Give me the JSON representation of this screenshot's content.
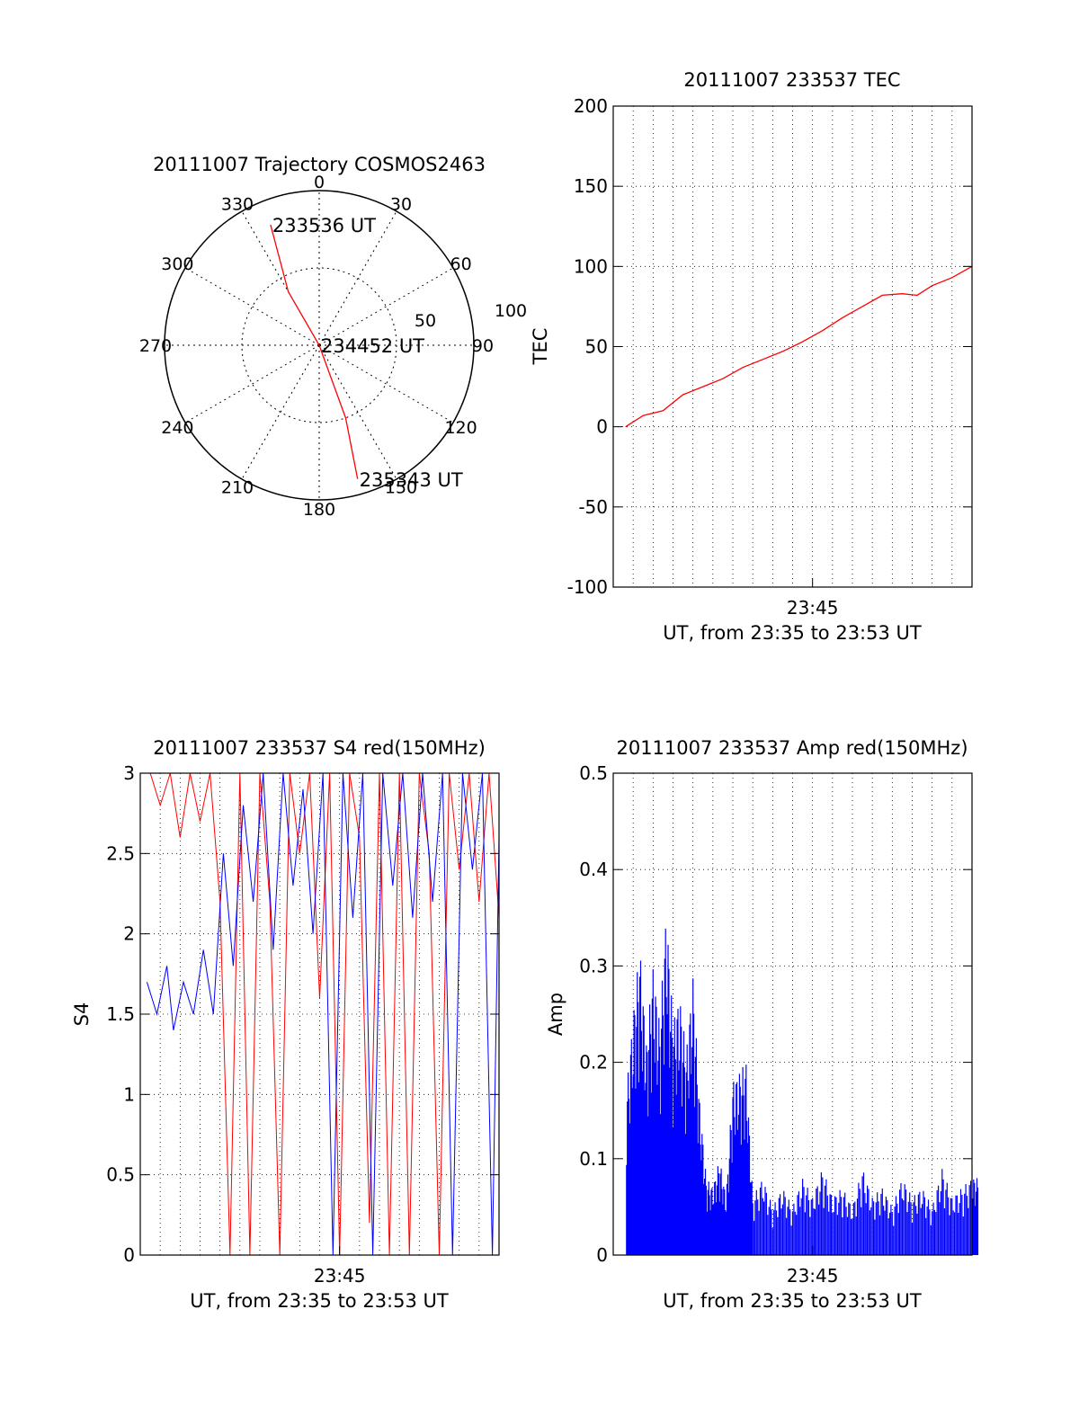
{
  "chart_data": [
    {
      "type": "polar",
      "title": "20111007 Trajectory COSMOS2463",
      "angular_ticks": [
        "0",
        "30",
        "60",
        "90",
        "120",
        "150",
        "180",
        "210",
        "240",
        "270",
        "300",
        "330"
      ],
      "angular_values": [
        0,
        30,
        60,
        90,
        120,
        150,
        180,
        210,
        240,
        270,
        300,
        330
      ],
      "radial_ticks": [
        "50",
        "100"
      ],
      "radial_values": [
        50,
        100
      ],
      "rlim": [
        0,
        100
      ],
      "grid": true,
      "trajectory": {
        "color": "#ff0000",
        "points": [
          {
            "az": 338,
            "r": 84,
            "label": "233536 UT"
          },
          {
            "az": 330,
            "r": 40
          },
          {
            "az": 0,
            "r": 0,
            "label": "234452 UT"
          },
          {
            "az": 160,
            "r": 50
          },
          {
            "az": 164,
            "r": 90,
            "label": "235343 UT"
          }
        ]
      }
    },
    {
      "type": "line",
      "title": "20111007 233537 TEC",
      "xlabel": "UT, from 23:35 to 23:53 UT",
      "ylabel": "TEC",
      "xlim": [
        "23:35",
        "23:53"
      ],
      "x_tick_labels": [
        {
          "t": "23:45",
          "label": "23:45"
        }
      ],
      "ylim": [
        -100,
        200
      ],
      "y_ticks": [
        -100,
        -50,
        0,
        50,
        100,
        150,
        200
      ],
      "grid": true,
      "series": [
        {
          "color": "#ff0000",
          "points": [
            [
              "23:35:37",
              0
            ],
            [
              "23:36:30",
              7
            ],
            [
              "23:37:30",
              10
            ],
            [
              "23:38:30",
              20
            ],
            [
              "23:39:30",
              25
            ],
            [
              "23:40:30",
              30
            ],
            [
              "23:41:30",
              37
            ],
            [
              "23:42:30",
              42
            ],
            [
              "23:43:30",
              47
            ],
            [
              "23:44:30",
              53
            ],
            [
              "23:45:30",
              60
            ],
            [
              "23:46:30",
              68
            ],
            [
              "23:47:30",
              75
            ],
            [
              "23:48:30",
              82
            ],
            [
              "23:49:30",
              83
            ],
            [
              "23:50:15",
              82
            ],
            [
              "23:51:00",
              88
            ],
            [
              "23:52:00",
              93
            ],
            [
              "23:53:00",
              100
            ]
          ]
        }
      ]
    },
    {
      "type": "line",
      "title": "20111007 233537 S4 red(150MHz)",
      "xlabel": "UT, from 23:35 to 23:53 UT",
      "ylabel": "S4",
      "xlim": [
        "23:35",
        "23:53"
      ],
      "x_tick_labels": [
        {
          "t": "23:45",
          "label": "23:45"
        }
      ],
      "ylim": [
        0,
        3
      ],
      "y_ticks": [
        0,
        0.5,
        1,
        1.5,
        2,
        2.5,
        3
      ],
      "y_tick_labels": [
        "0",
        "0.5",
        "1",
        "1.5",
        "2",
        "2.5",
        "3"
      ],
      "grid": true,
      "series": [
        {
          "color": "#ff0000",
          "points": [
            [
              "23:35:30",
              3.0
            ],
            [
              "23:36:00",
              2.8
            ],
            [
              "23:36:30",
              3.0
            ],
            [
              "23:37:00",
              2.6
            ],
            [
              "23:37:30",
              3.0
            ],
            [
              "23:38:00",
              2.7
            ],
            [
              "23:38:30",
              3.0
            ],
            [
              "23:39:00",
              2.2
            ],
            [
              "23:39:30",
              0.0
            ],
            [
              "23:40:00",
              3.0
            ],
            [
              "23:40:30",
              0.0
            ],
            [
              "23:41:00",
              3.0
            ],
            [
              "23:41:30",
              2.2
            ],
            [
              "23:42:00",
              0.0
            ],
            [
              "23:42:30",
              3.0
            ],
            [
              "23:43:00",
              2.5
            ],
            [
              "23:43:30",
              3.0
            ],
            [
              "23:44:00",
              1.6
            ],
            [
              "23:44:30",
              3.0
            ],
            [
              "23:45:00",
              0.0
            ],
            [
              "23:45:30",
              3.0
            ],
            [
              "23:46:00",
              2.6
            ],
            [
              "23:46:30",
              0.2
            ],
            [
              "23:47:00",
              3.0
            ],
            [
              "23:47:30",
              0.0
            ],
            [
              "23:48:00",
              3.0
            ],
            [
              "23:48:30",
              0.0
            ],
            [
              "23:49:00",
              3.0
            ],
            [
              "23:49:30",
              2.5
            ],
            [
              "23:50:00",
              0.0
            ],
            [
              "23:50:30",
              3.0
            ],
            [
              "23:51:00",
              2.4
            ],
            [
              "23:51:30",
              3.0
            ],
            [
              "23:52:00",
              2.2
            ],
            [
              "23:52:30",
              3.0
            ],
            [
              "23:53:00",
              2.1
            ]
          ]
        },
        {
          "color": "#0000ff",
          "points": [
            [
              "23:35:20",
              1.7
            ],
            [
              "23:35:50",
              1.5
            ],
            [
              "23:36:20",
              1.8
            ],
            [
              "23:36:40",
              1.4
            ],
            [
              "23:37:10",
              1.7
            ],
            [
              "23:37:40",
              1.5
            ],
            [
              "23:38:10",
              1.9
            ],
            [
              "23:38:40",
              1.5
            ],
            [
              "23:39:10",
              2.5
            ],
            [
              "23:39:40",
              1.8
            ],
            [
              "23:40:10",
              2.8
            ],
            [
              "23:40:40",
              2.2
            ],
            [
              "23:41:10",
              3.0
            ],
            [
              "23:41:40",
              1.9
            ],
            [
              "23:42:10",
              3.0
            ],
            [
              "23:42:40",
              2.3
            ],
            [
              "23:43:10",
              2.9
            ],
            [
              "23:43:40",
              2.0
            ],
            [
              "23:44:10",
              3.0
            ],
            [
              "23:44:40",
              0.0
            ],
            [
              "23:45:10",
              3.0
            ],
            [
              "23:45:40",
              2.1
            ],
            [
              "23:46:10",
              3.0
            ],
            [
              "23:46:40",
              0.0
            ],
            [
              "23:47:10",
              3.0
            ],
            [
              "23:47:40",
              2.3
            ],
            [
              "23:48:10",
              3.0
            ],
            [
              "23:48:40",
              2.1
            ],
            [
              "23:49:10",
              3.0
            ],
            [
              "23:49:40",
              2.2
            ],
            [
              "23:50:10",
              3.0
            ],
            [
              "23:50:40",
              0.0
            ],
            [
              "23:51:10",
              3.0
            ],
            [
              "23:51:40",
              2.4
            ],
            [
              "23:52:10",
              3.0
            ],
            [
              "23:52:40",
              0.0
            ],
            [
              "23:53:00",
              2.6
            ]
          ]
        }
      ]
    },
    {
      "type": "bar",
      "title": "20111007 233537 Amp red(150MHz)",
      "xlabel": "UT, from 23:35 to 23:53 UT",
      "ylabel": "Amp",
      "xlim": [
        "23:35",
        "23:53"
      ],
      "x_tick_labels": [
        {
          "t": "23:45",
          "label": "23:45"
        }
      ],
      "ylim": [
        0,
        0.5
      ],
      "y_ticks": [
        0,
        0.1,
        0.2,
        0.3,
        0.4,
        0.5
      ],
      "y_tick_labels": [
        "0",
        "0.1",
        "0.2",
        "0.3",
        "0.4",
        "0.5"
      ],
      "grid": true,
      "series": [
        {
          "color": "#0000ff",
          "points": [
            [
              "23:35:40",
              0.17
            ],
            [
              "23:36:00",
              0.25
            ],
            [
              "23:36:20",
              0.32
            ],
            [
              "23:36:40",
              0.22
            ],
            [
              "23:37:00",
              0.3
            ],
            [
              "23:37:20",
              0.24
            ],
            [
              "23:37:40",
              0.36
            ],
            [
              "23:38:00",
              0.24
            ],
            [
              "23:38:20",
              0.27
            ],
            [
              "23:38:40",
              0.21
            ],
            [
              "23:39:00",
              0.29
            ],
            [
              "23:39:20",
              0.16
            ],
            [
              "23:39:40",
              0.08
            ],
            [
              "23:40:00",
              0.07
            ],
            [
              "23:40:20",
              0.1
            ],
            [
              "23:40:40",
              0.06
            ],
            [
              "23:41:00",
              0.18
            ],
            [
              "23:41:20",
              0.19
            ],
            [
              "23:41:40",
              0.2
            ],
            [
              "23:42:00",
              0.06
            ],
            [
              "23:42:30",
              0.08
            ],
            [
              "23:43:00",
              0.05
            ],
            [
              "23:43:30",
              0.07
            ],
            [
              "23:44:00",
              0.05
            ],
            [
              "23:44:30",
              0.08
            ],
            [
              "23:45:00",
              0.06
            ],
            [
              "23:45:30",
              0.09
            ],
            [
              "23:46:00",
              0.06
            ],
            [
              "23:46:30",
              0.07
            ],
            [
              "23:47:00",
              0.05
            ],
            [
              "23:47:30",
              0.09
            ],
            [
              "23:48:00",
              0.06
            ],
            [
              "23:48:30",
              0.07
            ],
            [
              "23:49:00",
              0.05
            ],
            [
              "23:49:30",
              0.08
            ],
            [
              "23:50:00",
              0.06
            ],
            [
              "23:50:30",
              0.07
            ],
            [
              "23:51:00",
              0.05
            ],
            [
              "23:51:30",
              0.09
            ],
            [
              "23:52:00",
              0.06
            ],
            [
              "23:52:30",
              0.07
            ],
            [
              "23:53:00",
              0.08
            ]
          ]
        }
      ]
    }
  ]
}
